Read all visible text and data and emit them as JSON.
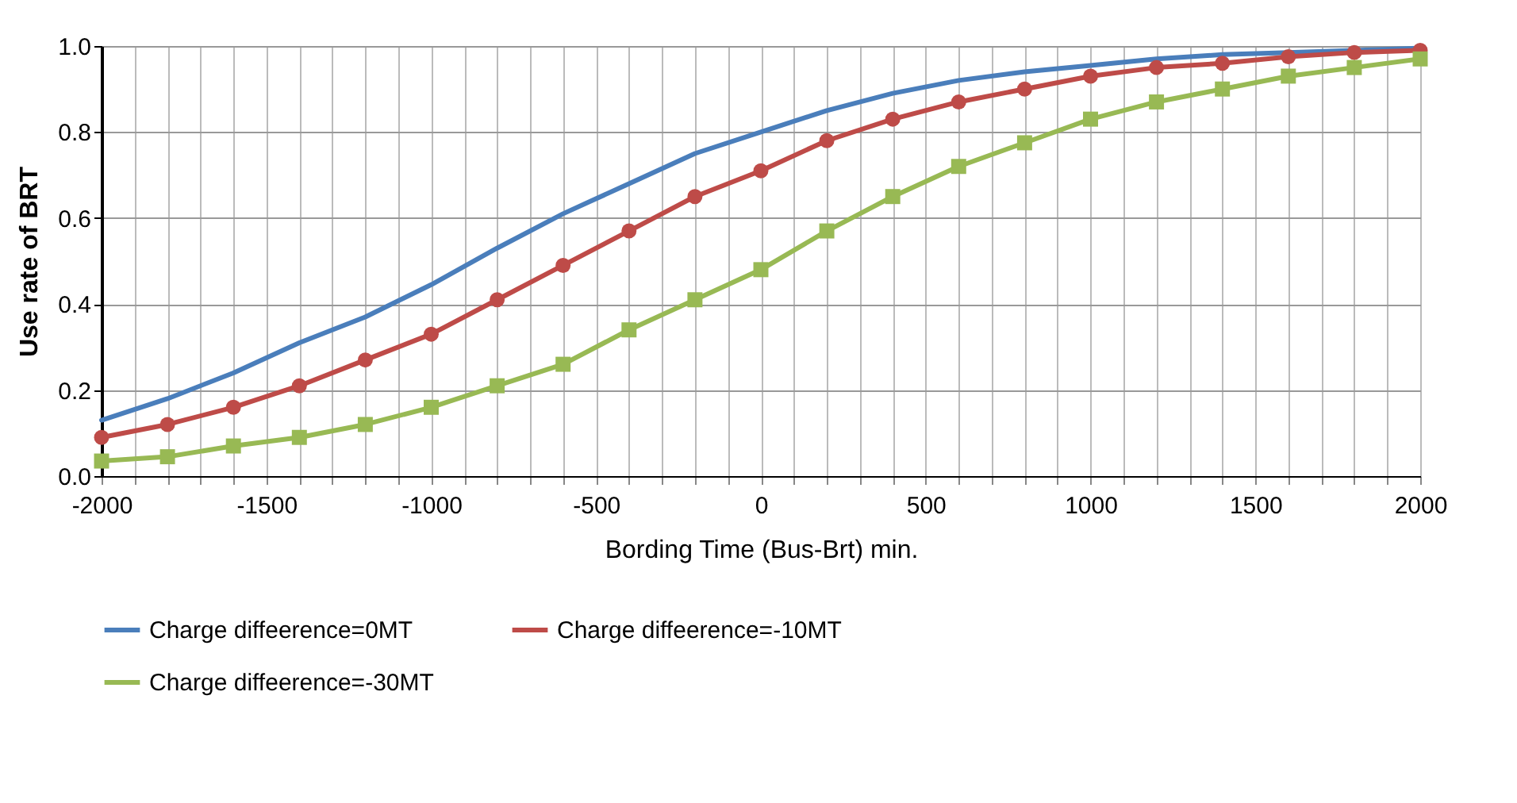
{
  "chart_data": {
    "type": "line",
    "xlabel": "Bording Time  (Bus-Brt) min.",
    "ylabel": "Use rate of BRT",
    "x": [
      -2000,
      -1800,
      -1600,
      -1400,
      -1200,
      -1000,
      -800,
      -600,
      -400,
      -200,
      0,
      200,
      400,
      600,
      800,
      1000,
      1200,
      1400,
      1600,
      1800,
      2000
    ],
    "series": [
      {
        "name": "Charge    diffeerence=0MT",
        "color": "#4a7ebb",
        "marker": "none",
        "values": [
          0.13,
          0.18,
          0.24,
          0.31,
          0.37,
          0.445,
          0.53,
          0.61,
          0.68,
          0.75,
          0.8,
          0.85,
          0.89,
          0.92,
          0.94,
          0.955,
          0.97,
          0.98,
          0.985,
          0.99,
          0.995
        ]
      },
      {
        "name": "Charge    diffeerence=-10MT",
        "color": "#be4b48",
        "marker": "circle",
        "values": [
          0.09,
          0.12,
          0.16,
          0.21,
          0.27,
          0.33,
          0.41,
          0.49,
          0.57,
          0.65,
          0.71,
          0.78,
          0.83,
          0.87,
          0.9,
          0.93,
          0.95,
          0.96,
          0.975,
          0.985,
          0.99
        ]
      },
      {
        "name": "Charge    diffeerence=-30MT",
        "color": "#98b954",
        "marker": "square",
        "values": [
          0.035,
          0.045,
          0.07,
          0.09,
          0.12,
          0.16,
          0.21,
          0.26,
          0.34,
          0.41,
          0.48,
          0.57,
          0.65,
          0.72,
          0.775,
          0.83,
          0.87,
          0.9,
          0.93,
          0.95,
          0.97
        ]
      }
    ],
    "xlim": [
      -2000,
      2000
    ],
    "xticks": [
      -2000,
      {
        "value": -1900,
        "label": null
      },
      {
        "value": -1800,
        "label": null
      },
      {
        "value": -1700,
        "label": null
      },
      {
        "value": -1600,
        "label": null
      },
      -1500,
      {
        "value": -1400,
        "label": null
      },
      {
        "value": -1300,
        "label": null
      },
      {
        "value": -1200,
        "label": null
      },
      {
        "value": -1100,
        "label": null
      },
      -1000,
      {
        "value": -900,
        "label": null
      },
      {
        "value": -800,
        "label": null
      },
      {
        "value": -700,
        "label": null
      },
      {
        "value": -600,
        "label": null
      },
      -500,
      {
        "value": -400,
        "label": null
      },
      {
        "value": -300,
        "label": null
      },
      {
        "value": -200,
        "label": null
      },
      {
        "value": -100,
        "label": null
      },
      0,
      {
        "value": 100,
        "label": null
      },
      {
        "value": 200,
        "label": null
      },
      {
        "value": 300,
        "label": null
      },
      {
        "value": 400,
        "label": null
      },
      500,
      {
        "value": 600,
        "label": null
      },
      {
        "value": 700,
        "label": null
      },
      {
        "value": 800,
        "label": null
      },
      {
        "value": 900,
        "label": null
      },
      1000,
      {
        "value": 1100,
        "label": null
      },
      {
        "value": 1200,
        "label": null
      },
      {
        "value": 1300,
        "label": null
      },
      {
        "value": 1400,
        "label": null
      },
      1500,
      {
        "value": 1600,
        "label": null
      },
      {
        "value": 1700,
        "label": null
      },
      {
        "value": 1800,
        "label": null
      },
      {
        "value": 1900,
        "label": null
      },
      2000
    ],
    "ylim": [
      0,
      1
    ],
    "yticks": [
      {
        "value": 0,
        "label": "0.0"
      },
      0.2,
      0.4,
      0.6,
      0.8,
      {
        "value": 1,
        "label": "1.0"
      }
    ],
    "grid": true,
    "legend": "bottom"
  }
}
